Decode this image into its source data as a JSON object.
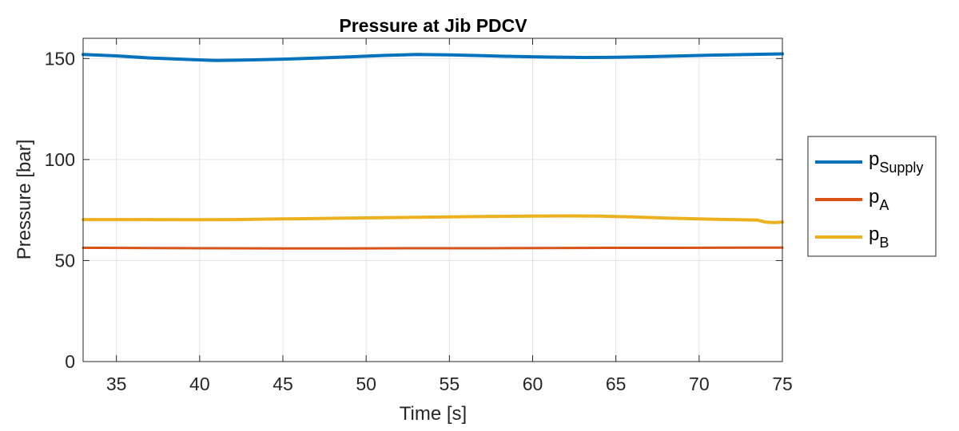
{
  "chart_data": {
    "type": "line",
    "title": "Pressure at Jib PDCV",
    "xlabel": "Time [s]",
    "ylabel": "Pressure [bar]",
    "xlim": [
      33,
      75
    ],
    "ylim": [
      0,
      160
    ],
    "xticks": [
      35,
      40,
      45,
      50,
      55,
      60,
      65,
      70,
      75
    ],
    "yticks": [
      0,
      50,
      100,
      150
    ],
    "grid": true,
    "legend_position": "outside-right",
    "series": [
      {
        "name": "p",
        "name_sub": "Supply",
        "color": "#0072BD",
        "x": [
          33,
          35,
          37,
          39,
          41,
          43,
          45,
          47,
          49,
          51,
          53,
          55,
          57,
          59,
          61,
          63,
          65,
          67,
          69,
          71,
          73,
          75
        ],
        "y": [
          152,
          151.3,
          150.3,
          149.6,
          149,
          149.3,
          149.7,
          150.2,
          150.8,
          151.5,
          152,
          151.8,
          151.4,
          151,
          150.7,
          150.5,
          150.6,
          150.9,
          151.3,
          151.7,
          152,
          152.3
        ]
      },
      {
        "name": "p",
        "name_sub": "A",
        "color": "#D95319",
        "x": [
          33,
          37,
          41,
          45,
          49,
          53,
          57,
          61,
          65,
          69,
          73,
          75
        ],
        "y": [
          56.3,
          56.2,
          56.1,
          56,
          56,
          56.1,
          56.1,
          56.2,
          56.3,
          56.3,
          56.4,
          56.4
        ]
      },
      {
        "name": "p",
        "name_sub": "B",
        "color": "#EDB120",
        "x": [
          33,
          36,
          39,
          42,
          45,
          48,
          51,
          54,
          57,
          60,
          62,
          64,
          66,
          68,
          70,
          72,
          73.5,
          74,
          74.5,
          75
        ],
        "y": [
          70.3,
          70.3,
          70.2,
          70.3,
          70.6,
          70.9,
          71.2,
          71.5,
          71.8,
          72,
          72.1,
          72,
          71.6,
          71,
          70.6,
          70.3,
          70,
          69,
          68.8,
          69
        ]
      }
    ]
  }
}
